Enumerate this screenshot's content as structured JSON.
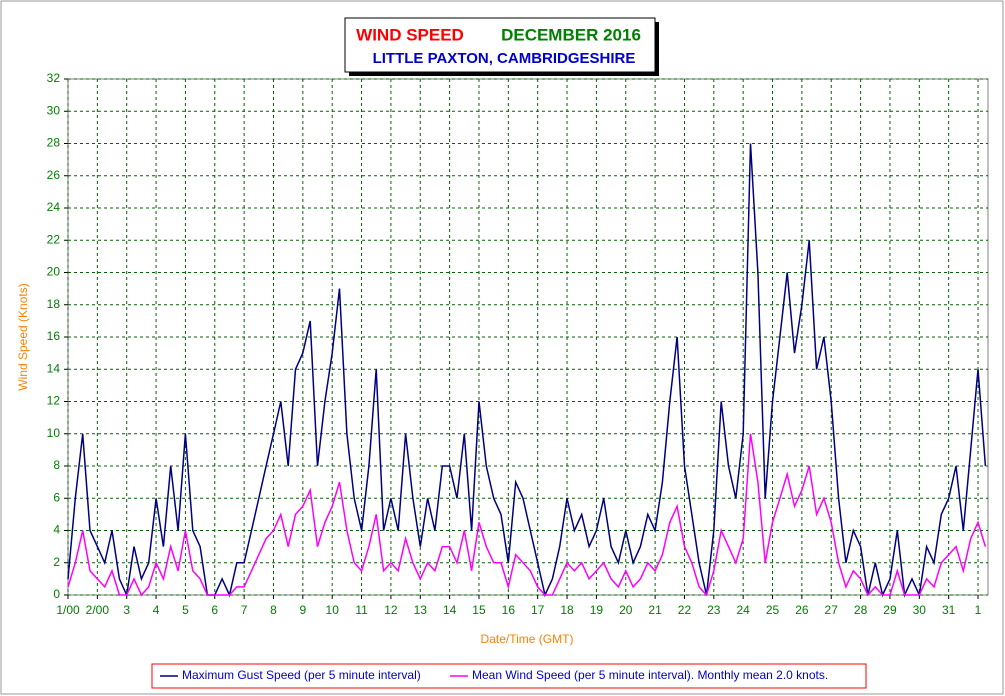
{
  "chart_data": {
    "type": "line",
    "title": "WIND SPEED",
    "title_period": "DECEMBER 2016",
    "subtitle": "LITTLE PAXTON, CAMBRIDGESHIRE",
    "x_label": "Date/Time (GMT)",
    "y_label": "Wind Speed (Knots)",
    "x": [
      0,
      0.25,
      0.5,
      0.75,
      1,
      1.25,
      1.5,
      1.75,
      2,
      2.25,
      2.5,
      2.75,
      3,
      3.25,
      3.5,
      3.75,
      4,
      4.25,
      4.5,
      4.75,
      5,
      5.25,
      5.5,
      5.75,
      6,
      6.25,
      6.5,
      6.75,
      7,
      7.25,
      7.5,
      7.75,
      8,
      8.25,
      8.5,
      8.75,
      9,
      9.25,
      9.5,
      9.75,
      10,
      10.25,
      10.5,
      10.75,
      11,
      11.25,
      11.5,
      11.75,
      12,
      12.25,
      12.5,
      12.75,
      13,
      13.25,
      13.5,
      13.75,
      14,
      14.25,
      14.5,
      14.75,
      15,
      15.25,
      15.5,
      15.75,
      16,
      16.25,
      16.5,
      16.75,
      17,
      17.25,
      17.5,
      17.75,
      18,
      18.25,
      18.5,
      18.75,
      19,
      19.25,
      19.5,
      19.75,
      20,
      20.25,
      20.5,
      20.75,
      21,
      21.25,
      21.5,
      21.75,
      22,
      22.25,
      22.5,
      22.75,
      23,
      23.25,
      23.5,
      23.75,
      24,
      24.25,
      24.5,
      24.75,
      25,
      25.25,
      25.5,
      25.75,
      26,
      26.25,
      26.5,
      26.75,
      27,
      27.25,
      27.5,
      27.75,
      28,
      28.25,
      28.5,
      28.75,
      29,
      29.25,
      29.5,
      29.75,
      30,
      30.25,
      30.5,
      30.75,
      31,
      31.25
    ],
    "series": [
      {
        "name": "Maximum Gust Speed (per 5 minute interval)",
        "color": "#000080",
        "values": [
          1,
          6,
          10,
          4,
          3,
          2,
          4,
          1,
          0,
          3,
          1,
          2,
          6,
          3,
          8,
          4,
          10,
          4,
          3,
          0,
          0,
          1,
          0,
          2,
          2,
          4,
          6,
          8,
          10,
          12,
          8,
          14,
          15,
          17,
          8,
          12,
          15,
          19,
          10,
          6,
          4,
          8,
          14,
          4,
          6,
          4,
          10,
          6,
          3,
          6,
          4,
          8,
          8,
          6,
          10,
          4,
          12,
          8,
          6,
          5,
          2,
          7,
          6,
          4,
          2,
          0,
          1,
          3,
          6,
          4,
          5,
          3,
          4,
          6,
          3,
          2,
          4,
          2,
          3,
          5,
          4,
          7,
          12,
          16,
          8,
          5,
          2,
          0,
          4,
          12,
          8,
          6,
          10,
          28,
          20,
          6,
          12,
          16,
          20,
          15,
          18,
          22,
          14,
          16,
          12,
          6,
          2,
          4,
          3,
          0,
          2,
          0,
          1,
          4,
          0,
          1,
          0,
          3,
          2,
          5,
          6,
          8,
          4,
          9,
          14,
          8
        ]
      },
      {
        "name": "Mean Wind Speed (per 5 minute interval). Monthly mean 2.0 knots.",
        "color": "#ff00ff",
        "values": [
          0.5,
          2,
          4,
          1.5,
          1,
          0.5,
          1.5,
          0,
          0,
          1,
          0,
          0.5,
          2,
          1,
          3,
          1.5,
          4,
          1.5,
          1,
          0,
          0,
          0,
          0,
          0.5,
          0.5,
          1.5,
          2.5,
          3.5,
          4,
          5,
          3,
          5,
          5.5,
          6.5,
          3,
          4.5,
          5.5,
          7,
          4,
          2,
          1.5,
          3,
          5,
          1.5,
          2,
          1.5,
          3.5,
          2,
          1,
          2,
          1.5,
          3,
          3,
          2,
          4,
          1.5,
          4.5,
          3,
          2,
          2,
          0.5,
          2.5,
          2,
          1.5,
          0.5,
          0,
          0,
          1,
          2,
          1.5,
          2,
          1,
          1.5,
          2,
          1,
          0.5,
          1.5,
          0.5,
          1,
          2,
          1.5,
          2.5,
          4.5,
          5.5,
          3,
          2,
          0.5,
          0,
          1.5,
          4,
          3,
          2,
          3.5,
          10,
          7,
          2,
          4.5,
          6,
          7.5,
          5.5,
          6.5,
          8,
          5,
          6,
          4.5,
          2,
          0.5,
          1.5,
          1,
          0,
          0.5,
          0,
          0,
          1.5,
          0,
          0,
          0,
          1,
          0.5,
          2,
          2.5,
          3,
          1.5,
          3.5,
          4.5,
          3
        ]
      }
    ],
    "xlim": [
      0,
      31.34
    ],
    "xticks": [
      {
        "value": 0,
        "label": "1/00"
      },
      {
        "value": 1,
        "label": "2/00"
      },
      {
        "value": 2,
        "label": "3"
      },
      {
        "value": 3,
        "label": "4"
      },
      {
        "value": 4,
        "label": "5"
      },
      {
        "value": 5,
        "label": "6"
      },
      {
        "value": 6,
        "label": "7"
      },
      {
        "value": 7,
        "label": "8"
      },
      {
        "value": 8,
        "label": "9"
      },
      {
        "value": 9,
        "label": "10"
      },
      {
        "value": 10,
        "label": "11"
      },
      {
        "value": 11,
        "label": "12"
      },
      {
        "value": 12,
        "label": "13"
      },
      {
        "value": 13,
        "label": "14"
      },
      {
        "value": 14,
        "label": "15"
      },
      {
        "value": 15,
        "label": "16"
      },
      {
        "value": 16,
        "label": "17"
      },
      {
        "value": 17,
        "label": "18"
      },
      {
        "value": 18,
        "label": "19"
      },
      {
        "value": 19,
        "label": "20"
      },
      {
        "value": 20,
        "label": "21"
      },
      {
        "value": 21,
        "label": "22"
      },
      {
        "value": 22,
        "label": "23"
      },
      {
        "value": 23,
        "label": "24"
      },
      {
        "value": 24,
        "label": "25"
      },
      {
        "value": 25,
        "label": "26"
      },
      {
        "value": 26,
        "label": "27"
      },
      {
        "value": 27,
        "label": "28"
      },
      {
        "value": 28,
        "label": "29"
      },
      {
        "value": 29,
        "label": "30"
      },
      {
        "value": 30,
        "label": "31"
      },
      {
        "value": 31,
        "label": "1"
      }
    ],
    "ylim": [
      0,
      32
    ],
    "yticks": [
      0,
      2,
      4,
      6,
      8,
      10,
      12,
      14,
      16,
      18,
      20,
      22,
      24,
      26,
      28,
      30,
      32
    ],
    "grid": true,
    "legend": "bottom"
  }
}
